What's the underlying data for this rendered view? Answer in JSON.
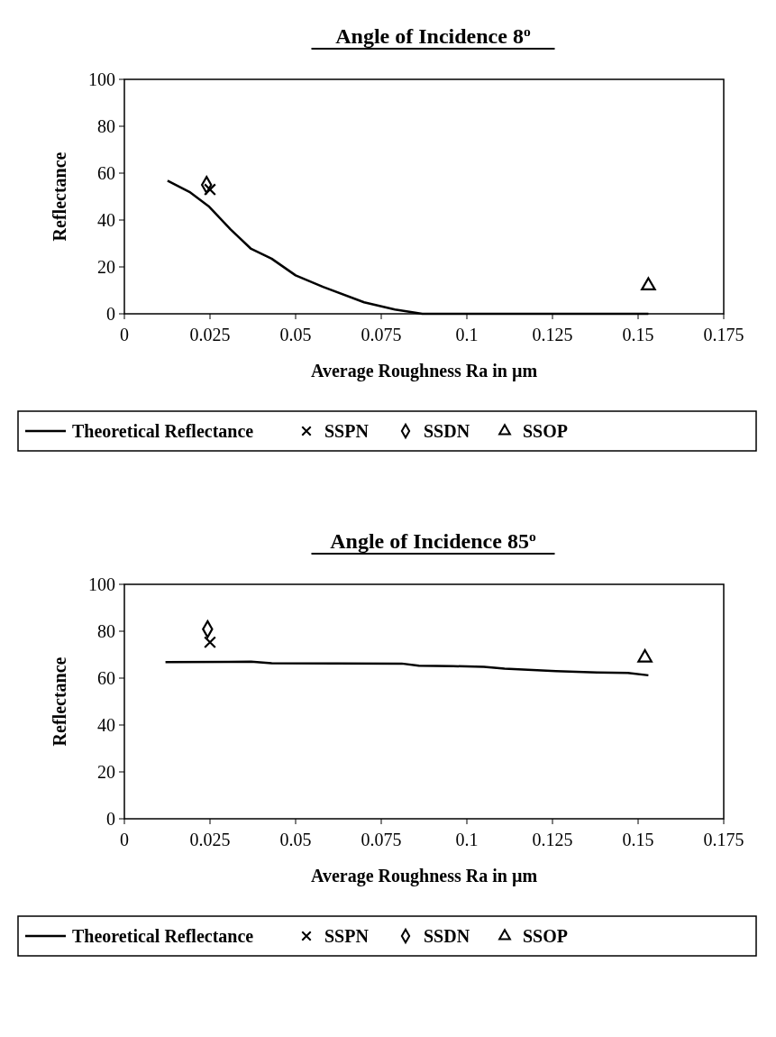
{
  "chart_data": [
    {
      "type": "line",
      "title": "Angle of Incidence 8$^{o}$",
      "xlabel": "Average Roughness Ra in µm",
      "ylabel": "Reflectance",
      "xlim": [
        0,
        0.175
      ],
      "xticks": [
        0,
        0.025,
        0.05,
        0.075,
        0.1,
        0.125,
        0.15,
        0.175
      ],
      "ylim": [
        0,
        100
      ],
      "yticks": [
        0,
        20,
        40,
        60,
        80,
        100
      ],
      "legend": "bottom",
      "series": [
        {
          "name": "Theoretical Reflectance",
          "color": "#000000",
          "marker": "none",
          "line_style": "solid",
          "x": [
            0.0126,
            0.019,
            0.0246,
            0.031,
            0.037,
            0.043,
            0.05,
            0.058,
            0.07,
            0.079,
            0.087,
            0.096,
            0.12,
            0.153
          ],
          "values": [
            56.8,
            52,
            45.9,
            36,
            27.7,
            23.5,
            16.4,
            11.5,
            4.9,
            1.8,
            0,
            0,
            0,
            0
          ]
        },
        {
          "name": "SSPN",
          "type": "scatter",
          "color": "#000000",
          "marker": "cross",
          "x": [
            0.025
          ],
          "values": [
            53
          ]
        },
        {
          "name": "SSDN",
          "type": "scatter",
          "color": "#000000",
          "marker": "diamond",
          "x": [
            0.024
          ],
          "values": [
            55
          ]
        },
        {
          "name": "SSOP",
          "type": "scatter",
          "color": "#000000",
          "marker": "triangle",
          "x": [
            0.153
          ],
          "values": [
            12
          ]
        }
      ]
    },
    {
      "type": "line",
      "title": "Angle of Incidence 85$^{o}$",
      "xlabel": "Average Roughness Ra in µm",
      "ylabel": "Reflectance",
      "xlim": [
        0,
        0.175
      ],
      "xticks": [
        0,
        0.025,
        0.05,
        0.075,
        0.1,
        0.125,
        0.15,
        0.175
      ],
      "ylim": [
        0,
        100
      ],
      "yticks": [
        0,
        20,
        40,
        60,
        80,
        100
      ],
      "legend": "bottom",
      "series": [
        {
          "name": "Theoretical Reflectance",
          "color": "#000000",
          "marker": "none",
          "line_style": "solid",
          "x": [
            0.012,
            0.037,
            0.043,
            0.081,
            0.086,
            0.096,
            0.105,
            0.111,
            0.126,
            0.138,
            0.147,
            0.153
          ],
          "values": [
            66.8,
            67,
            66.3,
            66.2,
            65.3,
            65.1,
            64.8,
            64,
            63,
            62.4,
            62.2,
            61.2
          ]
        },
        {
          "name": "SSPN",
          "type": "scatter",
          "color": "#000000",
          "marker": "cross",
          "x": [
            0.025
          ],
          "values": [
            75.3
          ]
        },
        {
          "name": "SSDN",
          "type": "scatter",
          "color": "#000000",
          "marker": "diamond",
          "x": [
            0.0243
          ],
          "values": [
            80.9
          ]
        },
        {
          "name": "SSOP",
          "type": "scatter",
          "color": "#000000",
          "marker": "triangle",
          "x": [
            0.152
          ],
          "values": [
            68.7
          ]
        }
      ]
    }
  ]
}
